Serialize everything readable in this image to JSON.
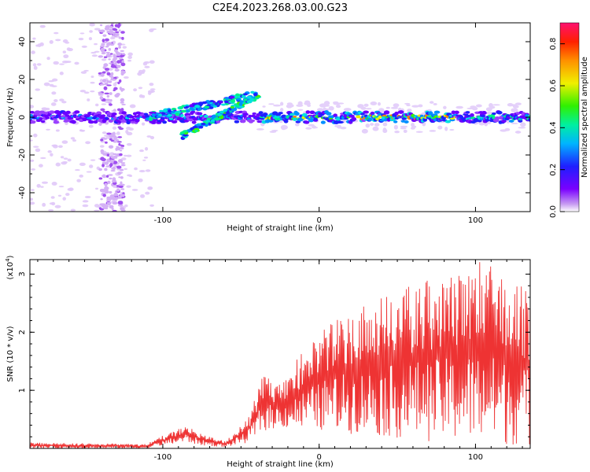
{
  "title": "C2E4.2023.268.03.00.G23",
  "chart_data": [
    {
      "type": "heatmap",
      "xlabel": "Height of straight line (km)",
      "ylabel": "Frequency (Hz)",
      "xlim": [
        -185,
        135
      ],
      "ylim": [
        -50,
        50
      ],
      "xticks": [
        -100,
        0,
        100
      ],
      "yticks": [
        -40,
        -20,
        0,
        20,
        40
      ],
      "colorbar": {
        "label": "Normalized spectral amplitude",
        "range": [
          0,
          0.9
        ],
        "ticks": [
          "0.0",
          "0.2",
          "0.4",
          "0.6",
          "0.8"
        ]
      },
      "features": [
        {
          "name": "main band",
          "x_range": [
            -185,
            135
          ],
          "freq_center": 0,
          "freq_halfwidth": 4
        },
        {
          "name": "upper branch",
          "x_range": [
            -110,
            -40
          ],
          "freq_start": 0,
          "freq_end": 12
        },
        {
          "name": "lower branch",
          "x_range": [
            -88,
            -38
          ],
          "freq_start": -10,
          "freq_end": 12
        },
        {
          "name": "noise column",
          "x_range": [
            -140,
            -125
          ],
          "freq_range": [
            -50,
            50
          ]
        }
      ]
    },
    {
      "type": "line",
      "xlabel": "Height of straight line (km)",
      "ylabel": "SNR (10 * v/v)",
      "y_exponent_label": "(x10",
      "y_exponent": "4",
      "y_exponent_close": ")",
      "xlim": [
        -185,
        135
      ],
      "ylim": [
        0,
        3.25
      ],
      "xticks": [
        -100,
        0,
        100
      ],
      "yticks": [
        1,
        2,
        3
      ],
      "color": "#ee3333",
      "envelope": [
        {
          "x": -185,
          "low": 0.0,
          "high": 0.1
        },
        {
          "x": -110,
          "low": 0.0,
          "high": 0.08
        },
        {
          "x": -100,
          "low": 0.05,
          "high": 0.22
        },
        {
          "x": -85,
          "low": 0.1,
          "high": 0.4
        },
        {
          "x": -75,
          "low": 0.05,
          "high": 0.25
        },
        {
          "x": -60,
          "low": 0.02,
          "high": 0.12
        },
        {
          "x": -45,
          "low": 0.1,
          "high": 0.55
        },
        {
          "x": -36,
          "low": 0.3,
          "high": 1.25
        },
        {
          "x": -25,
          "low": 0.35,
          "high": 1.1
        },
        {
          "x": -10,
          "low": 0.3,
          "high": 1.7
        },
        {
          "x": 5,
          "low": 0.3,
          "high": 2.1
        },
        {
          "x": 20,
          "low": 0.25,
          "high": 2.4
        },
        {
          "x": 40,
          "low": 0.2,
          "high": 2.6
        },
        {
          "x": 60,
          "low": 0.15,
          "high": 2.85
        },
        {
          "x": 80,
          "low": 0.1,
          "high": 3.0
        },
        {
          "x": 100,
          "low": 0.1,
          "high": 3.25
        },
        {
          "x": 115,
          "low": 0.05,
          "high": 3.1
        },
        {
          "x": 135,
          "low": 0.05,
          "high": 2.7
        }
      ]
    }
  ]
}
